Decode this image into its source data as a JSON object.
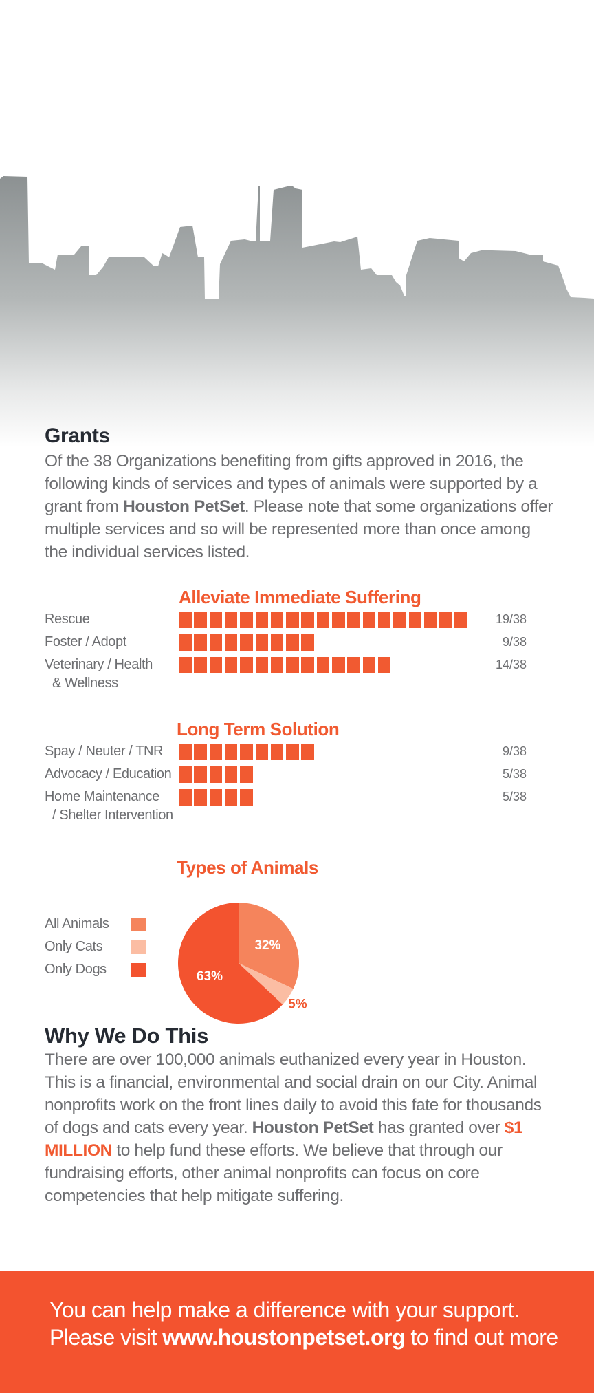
{
  "grants": {
    "heading": "Grants",
    "intro_1": "Of the 38 Organizations benefiting from gifts approved in 2016, the following kinds of services and types of animals were supported by a grant from ",
    "brand": "Houston PetSet",
    "intro_2": ". Please note that some organizations offer multiple services and so will be represented more than once among the individual services listed."
  },
  "colors": {
    "accent": "#f15a31",
    "all_animals": "#f5845c",
    "only_cats": "#fbbda3",
    "only_dogs": "#f3532f",
    "footer": "#f3532f",
    "heading": "#262b33",
    "body_text": "#6d6e71"
  },
  "chart_data": [
    {
      "type": "bar",
      "title": "Alleviate Immediate Suffering",
      "categories": [
        "Rescue",
        "Foster / Adopt",
        "Veterinary / Health & Wellness"
      ],
      "category_lines": [
        [
          "Rescue"
        ],
        [
          "Foster / Adopt"
        ],
        [
          "Veterinary / Health",
          "& Wellness"
        ]
      ],
      "values": [
        19,
        9,
        14
      ],
      "total": 38,
      "value_labels": [
        "19/38",
        "9/38",
        "14/38"
      ]
    },
    {
      "type": "bar",
      "title": "Long Term Solution",
      "categories": [
        "Spay / Neuter / TNR",
        "Advocacy / Education",
        "Home Maintenance / Shelter Intervention"
      ],
      "category_lines": [
        [
          "Spay / Neuter / TNR"
        ],
        [
          "Advocacy / Education"
        ],
        [
          "Home Maintenance",
          "/ Shelter Intervention"
        ]
      ],
      "values": [
        9,
        5,
        5
      ],
      "total": 38,
      "value_labels": [
        "9/38",
        "5/38",
        "5/38"
      ]
    },
    {
      "type": "pie",
      "title": "Types of Animals",
      "categories": [
        "All Animals",
        "Only Cats",
        "Only Dogs"
      ],
      "values": [
        32,
        5,
        63
      ],
      "labels": [
        "32%",
        "5%",
        "63%"
      ]
    }
  ],
  "why": {
    "heading": "Why We Do This",
    "text_1": "There are over 100,000 animals euthanized every year in Houston. This is a financial, environmental and social drain on our City. Animal nonprofits work on the front lines daily to avoid this fate for thousands of dogs and cats every year. ",
    "brand": "Houston PetSet",
    "text_2": " has granted over ",
    "amount": "$1 MILLION",
    "text_3": " to help fund these efforts. We believe that through our fundraising efforts, other animal nonprofits can focus on core competencies that help mitigate suffering."
  },
  "footer": {
    "line1": "You can help make a difference with your support.",
    "line2_prefix": "Please visit ",
    "url": "www.houstonpetset.org",
    "line2_suffix": " to find out more"
  }
}
